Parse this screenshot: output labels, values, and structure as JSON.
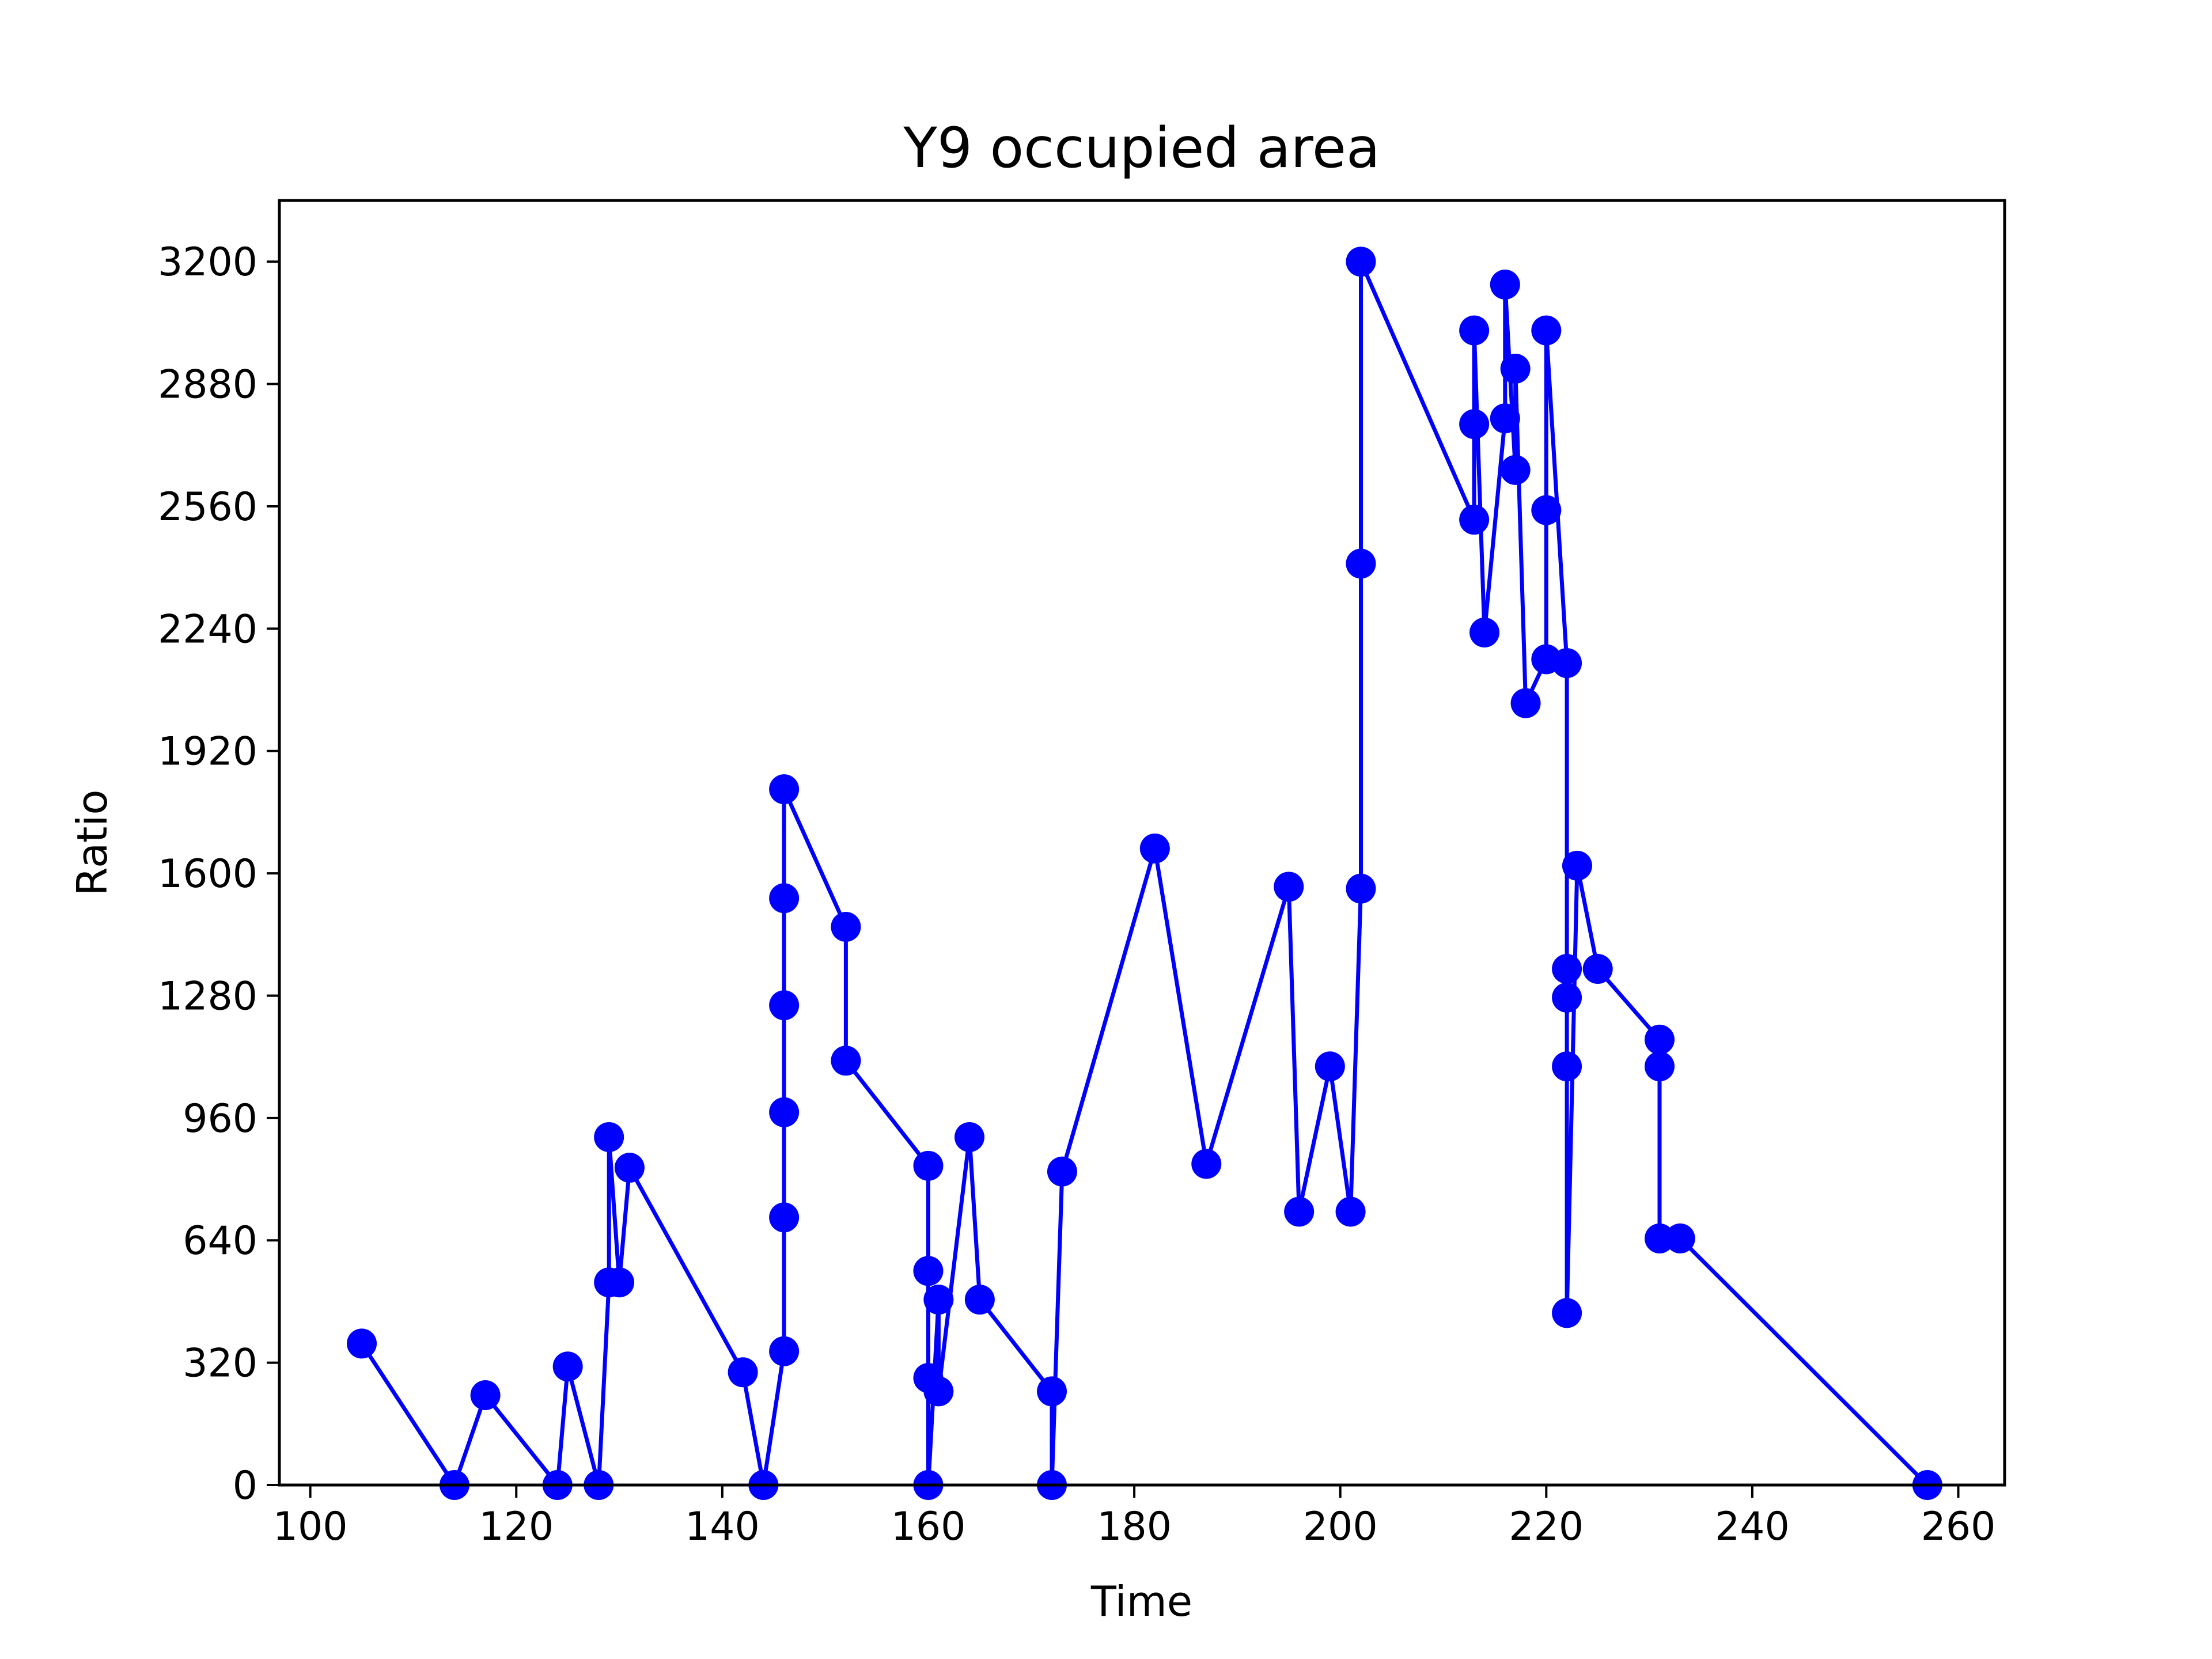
{
  "chart_data": {
    "type": "line",
    "title": "Y9 occupied area",
    "xlabel": "Time",
    "ylabel": "Ratio",
    "xlim": [
      97,
      264.5
    ],
    "ylim": [
      0,
      3360
    ],
    "xticks": [
      100,
      120,
      140,
      160,
      180,
      200,
      220,
      240,
      260
    ],
    "yticks": [
      0,
      320,
      640,
      960,
      1280,
      1600,
      1920,
      2240,
      2560,
      2880,
      3200
    ],
    "grid": false,
    "legend": "none",
    "series": [
      {
        "color": "#0000ff",
        "marker": "circle",
        "points": [
          [
            105,
            370
          ],
          [
            114,
            0
          ],
          [
            117,
            235
          ],
          [
            124,
            0
          ],
          [
            125,
            310
          ],
          [
            128,
            0
          ],
          [
            129,
            530
          ],
          [
            129,
            910
          ],
          [
            130,
            530
          ],
          [
            131,
            830
          ],
          [
            142,
            295
          ],
          [
            144,
            0
          ],
          [
            146,
            350
          ],
          [
            146,
            700
          ],
          [
            146,
            975
          ],
          [
            146,
            1255
          ],
          [
            146,
            1535
          ],
          [
            146,
            1820
          ],
          [
            152,
            1460
          ],
          [
            152,
            1110
          ],
          [
            160,
            835
          ],
          [
            160,
            560
          ],
          [
            160,
            280
          ],
          [
            160,
            0
          ],
          [
            161,
            485
          ],
          [
            161,
            245
          ],
          [
            164,
            910
          ],
          [
            165,
            485
          ],
          [
            172,
            245
          ],
          [
            172,
            0
          ],
          [
            173,
            820
          ],
          [
            182,
            1665
          ],
          [
            187,
            840
          ],
          [
            195,
            1565
          ],
          [
            196,
            715
          ],
          [
            199,
            1095
          ],
          [
            201,
            715
          ],
          [
            202,
            1560
          ],
          [
            202,
            2410
          ],
          [
            202,
            3200
          ],
          [
            213,
            2525
          ],
          [
            213,
            2775
          ],
          [
            213,
            3020
          ],
          [
            214,
            2230
          ],
          [
            216,
            2790
          ],
          [
            216,
            3140
          ],
          [
            217,
            2655
          ],
          [
            217,
            2920
          ],
          [
            218,
            2045
          ],
          [
            220,
            2160
          ],
          [
            220,
            2550
          ],
          [
            220,
            3020
          ],
          [
            222,
            2150
          ],
          [
            222,
            1095
          ],
          [
            222,
            1275
          ],
          [
            222,
            1350
          ],
          [
            222,
            450
          ],
          [
            223,
            1620
          ],
          [
            225,
            1350
          ],
          [
            231,
            1165
          ],
          [
            231,
            1095
          ],
          [
            231,
            645
          ],
          [
            233,
            645
          ],
          [
            257,
            0
          ]
        ]
      }
    ]
  }
}
